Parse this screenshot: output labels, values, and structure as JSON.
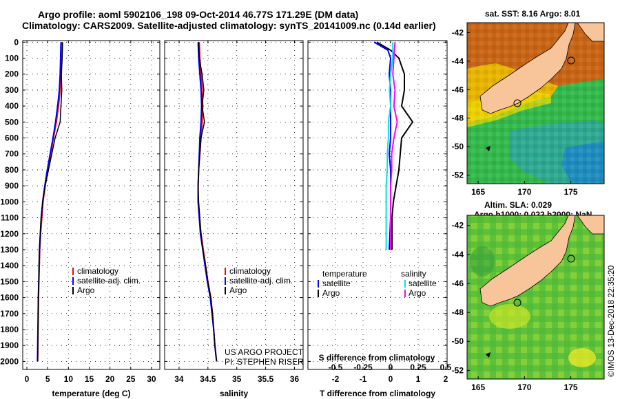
{
  "header": {
    "line1": "Argo profile: aoml 5902106_198 09-Oct-2014 46.77S 171.29E (DM data)",
    "line2": "Climatology: CARS2009. Satellite-adjusted climatology: synTS_20141009.nc (0.14d earlier)"
  },
  "colors": {
    "climatology": "#ff0000",
    "satellite": "#0000ff",
    "argo": "#000000",
    "sal_satellite": "#00e5e5",
    "sal_argo": "#ff00ff"
  },
  "depth_axis": {
    "ticks": [
      "0",
      "100",
      "200",
      "300",
      "400",
      "500",
      "600",
      "700",
      "800",
      "900",
      "1000",
      "1100",
      "1200",
      "1300",
      "1400",
      "1500",
      "1600",
      "1700",
      "1800",
      "1900",
      "2000"
    ]
  },
  "chart_data": [
    {
      "type": "line",
      "id": "temperature",
      "xlabel": "temperature (deg C)",
      "ylabel": "",
      "xlim": [
        -1,
        32
      ],
      "ylim": [
        2050,
        -10
      ],
      "xticks": [
        "0",
        "5",
        "10",
        "15",
        "20",
        "25",
        "30"
      ],
      "legend": {
        "position": "middle-right",
        "labels": [
          "climatology",
          "satellite-adj. clim.",
          "Argo"
        ]
      },
      "series": [
        {
          "name": "climatology",
          "x": [
            8.5,
            8.4,
            8.2,
            8.0,
            7.6,
            7.1,
            6.4,
            5.7,
            5.0,
            4.4,
            3.9,
            3.6,
            3.3,
            3.1,
            3.0,
            2.9,
            2.8,
            2.75,
            2.7,
            2.65,
            2.6
          ],
          "y": [
            0,
            100,
            200,
            300,
            400,
            500,
            600,
            700,
            800,
            900,
            1000,
            1100,
            1200,
            1300,
            1400,
            1500,
            1600,
            1700,
            1800,
            1900,
            2000
          ]
        },
        {
          "name": "satellite-adj. clim.",
          "x": [
            8.2,
            8.1,
            8.0,
            7.8,
            7.4,
            6.9,
            6.3,
            5.6,
            4.9,
            4.3,
            3.8,
            3.5,
            3.25,
            3.05,
            2.95,
            2.85,
            2.75,
            2.7,
            2.65,
            2.6,
            2.55
          ],
          "y": [
            0,
            100,
            200,
            300,
            400,
            500,
            600,
            700,
            800,
            900,
            1000,
            1100,
            1200,
            1300,
            1400,
            1500,
            1600,
            1700,
            1800,
            1900,
            2000
          ]
        },
        {
          "name": "Argo",
          "x": [
            8.6,
            8.5,
            8.3,
            8.4,
            8.2,
            8.0,
            6.8,
            6.0,
            5.2,
            4.4,
            3.8,
            3.4,
            3.2,
            3.0,
            2.9,
            2.85,
            2.8,
            2.75,
            2.7,
            2.65,
            2.6
          ],
          "y": [
            0,
            100,
            200,
            300,
            400,
            500,
            600,
            700,
            800,
            900,
            1000,
            1100,
            1200,
            1300,
            1400,
            1500,
            1600,
            1700,
            1800,
            1900,
            2000
          ]
        }
      ]
    },
    {
      "type": "line",
      "id": "salinity",
      "xlabel": "salinity",
      "ylabel": "",
      "xlim": [
        33.75,
        36.15
      ],
      "ylim": [
        2050,
        -10
      ],
      "xticks": [
        "34",
        "34.5",
        "35",
        "35.5",
        "36"
      ],
      "legend": {
        "position": "middle-right",
        "labels": [
          "climatology",
          "satellite-adj. clim.",
          "Argo"
        ]
      },
      "series": [
        {
          "name": "climatology",
          "x": [
            34.35,
            34.36,
            34.38,
            34.4,
            34.41,
            34.4,
            34.38,
            34.36,
            34.34,
            34.33,
            34.33,
            34.35,
            34.38,
            34.42,
            34.46,
            34.5,
            34.55,
            34.58,
            34.6,
            34.62,
            34.65
          ],
          "y": [
            0,
            100,
            200,
            300,
            400,
            500,
            600,
            700,
            800,
            900,
            1000,
            1100,
            1200,
            1300,
            1400,
            1500,
            1600,
            1700,
            1800,
            1900,
            2000
          ]
        },
        {
          "name": "satellite-adj. clim.",
          "x": [
            34.33,
            34.34,
            34.36,
            34.38,
            34.39,
            34.38,
            34.36,
            34.35,
            34.34,
            34.33,
            34.33,
            34.35,
            34.37,
            34.41,
            34.45,
            34.49,
            34.54,
            34.57,
            34.6,
            34.62,
            34.65
          ],
          "y": [
            0,
            100,
            200,
            300,
            400,
            500,
            600,
            700,
            800,
            900,
            1000,
            1100,
            1200,
            1300,
            1400,
            1500,
            1600,
            1700,
            1800,
            1900,
            2000
          ]
        },
        {
          "name": "Argo",
          "x": [
            34.34,
            34.35,
            34.4,
            34.43,
            34.4,
            34.44,
            34.38,
            34.36,
            34.34,
            34.33,
            34.34,
            34.36,
            34.38,
            34.41,
            34.46,
            34.5,
            34.55,
            34.58,
            34.6,
            34.62,
            34.65
          ],
          "y": [
            0,
            100,
            200,
            300,
            400,
            500,
            600,
            700,
            800,
            900,
            1000,
            1100,
            1200,
            1300,
            1400,
            1500,
            1600,
            1700,
            1800,
            1900,
            2000
          ]
        }
      ]
    },
    {
      "type": "line",
      "id": "differences",
      "xlabel": "T difference from climatology",
      "xlabel_top": "S difference from climatology",
      "xlim": [
        -3,
        2.05
      ],
      "ylim": [
        2050,
        -10
      ],
      "xticks": [
        "-2",
        "-1",
        "0",
        "1",
        "2"
      ],
      "sticks": [
        "-0.5",
        "-0.25",
        "0",
        "0.25",
        "0.5"
      ],
      "legend": {
        "position": "lower",
        "temp_title": "temperature",
        "sal_title": "salinity",
        "temp_labels": [
          "satellite",
          "Argo"
        ],
        "sal_labels": [
          "satellite",
          "Argo"
        ]
      },
      "series": [
        {
          "name": "T satellite",
          "x": [
            -0.6,
            -0.1,
            0.0,
            -0.05,
            0.0,
            0.0,
            0.0,
            0.0,
            -0.05,
            0.0,
            0.0,
            0.0,
            0.0,
            -0.05
          ],
          "y": [
            0,
            50,
            100,
            200,
            300,
            400,
            500,
            600,
            700,
            800,
            900,
            1000,
            1100,
            1300
          ]
        },
        {
          "name": "T Argo",
          "x": [
            -0.5,
            0.0,
            0.3,
            0.5,
            0.5,
            0.4,
            0.8,
            0.4,
            0.35,
            0.3,
            0.2,
            0.1,
            0.05,
            0.05
          ],
          "y": [
            0,
            50,
            100,
            200,
            300,
            400,
            500,
            600,
            700,
            800,
            900,
            1000,
            1100,
            1300
          ]
        },
        {
          "name": "S satellite",
          "x": [
            0.02,
            0.02,
            0.0,
            -0.01,
            0.0,
            -0.02,
            -0.02,
            -0.03,
            -0.03,
            -0.04,
            -0.04,
            -0.04,
            -0.04
          ],
          "y": [
            0,
            100,
            200,
            300,
            400,
            500,
            600,
            700,
            800,
            900,
            1000,
            1100,
            1300
          ]
        },
        {
          "name": "S Argo",
          "x": [
            0.04,
            0.03,
            0.02,
            0.04,
            0.03,
            0.06,
            0.03,
            0.01,
            0.01,
            0.0,
            0.0,
            0.0,
            0.0
          ],
          "y": [
            0,
            100,
            200,
            300,
            400,
            500,
            600,
            700,
            800,
            900,
            1000,
            1100,
            1300
          ]
        }
      ]
    }
  ],
  "credits": {
    "line1": "US ARGO PROJECT",
    "line2": "PI: STEPHEN RISER"
  },
  "maps": {
    "sst": {
      "title": "sat. SST: 8.16 Argo: 8.01",
      "lat_ticks": [
        "-42",
        "-44",
        "-46",
        "-48",
        "-50",
        "-52"
      ],
      "lon_ticks": [
        "165",
        "170",
        "175"
      ]
    },
    "sla": {
      "title1": "Altim. SLA: 0.029",
      "title2": "Argo h1000: 0.022 h2000: NaN",
      "lat_ticks": [
        "-42",
        "-44",
        "-46",
        "-48",
        "-50",
        "-52"
      ],
      "lon_ticks": [
        "165",
        "170",
        "175"
      ]
    }
  },
  "stamp": "©IMOS 13-Dec-2018 22:35:20"
}
